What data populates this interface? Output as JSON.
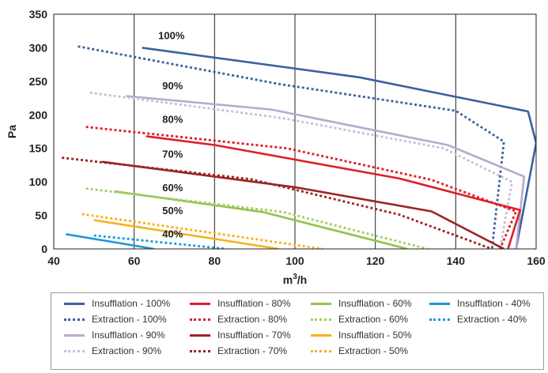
{
  "chart_data": {
    "type": "line",
    "xlabel": "m³/h",
    "ylabel": "Pa",
    "xlim": [
      40,
      160
    ],
    "ylim": [
      0,
      350
    ],
    "x_ticks": [
      "40",
      "60",
      "80",
      "100",
      "120",
      "140",
      "160"
    ],
    "y_ticks": [
      "0",
      "50",
      "100",
      "150",
      "200",
      "250",
      "300",
      "350"
    ],
    "grid": "vertical lines at each x tick",
    "annotations": [
      {
        "text": "100%",
        "x": 66,
        "y": 313
      },
      {
        "text": "90%",
        "x": 67,
        "y": 238
      },
      {
        "text": "80%",
        "x": 67,
        "y": 188
      },
      {
        "text": "70%",
        "x": 67,
        "y": 136
      },
      {
        "text": "60%",
        "x": 67,
        "y": 86
      },
      {
        "text": "50%",
        "x": 67,
        "y": 52
      },
      {
        "text": "40%",
        "x": 67,
        "y": 17
      }
    ],
    "series": [
      {
        "name": "Insufflation - 100%",
        "color": "#3a62a0",
        "dash": "solid",
        "points": [
          [
            62,
            300
          ],
          [
            116,
            256
          ],
          [
            158,
            205
          ],
          [
            160,
            158
          ],
          [
            155,
            0
          ]
        ]
      },
      {
        "name": "Extraction - 100%",
        "color": "#3a62a0",
        "dash": "dotted",
        "points": [
          [
            46,
            302
          ],
          [
            96,
            246
          ],
          [
            140,
            206
          ],
          [
            152,
            160
          ],
          [
            149,
            0
          ]
        ]
      },
      {
        "name": "Insufflation - 90%",
        "color": "#b9a9cd",
        "dash": "solid",
        "points": [
          [
            58,
            228
          ],
          [
            94,
            208
          ],
          [
            138,
            155
          ],
          [
            157,
            108
          ],
          [
            155,
            0
          ]
        ]
      },
      {
        "name": "Extraction - 90%",
        "color": "#c9bdd8",
        "dash": "dotted",
        "points": [
          [
            49,
            233
          ],
          [
            97,
            195
          ],
          [
            137,
            150
          ],
          [
            154,
            100
          ],
          [
            151,
            0
          ]
        ]
      },
      {
        "name": "Insufflation - 80%",
        "color": "#e01e28",
        "dash": "solid",
        "points": [
          [
            63,
            168
          ],
          [
            80,
            155
          ],
          [
            126,
            105
          ],
          [
            156,
            58
          ],
          [
            153,
            0
          ]
        ]
      },
      {
        "name": "Extraction - 80%",
        "color": "#e01e28",
        "dash": "dotted",
        "points": [
          [
            48,
            182
          ],
          [
            98,
            150
          ],
          [
            134,
            103
          ],
          [
            155,
            56
          ],
          [
            151,
            0
          ]
        ]
      },
      {
        "name": "Insufflation - 70%",
        "color": "#9b2424",
        "dash": "solid",
        "points": [
          [
            52,
            130
          ],
          [
            100,
            92
          ],
          [
            134,
            56
          ],
          [
            152,
            0
          ]
        ]
      },
      {
        "name": "Extraction - 70%",
        "color": "#9b2424",
        "dash": "dotted",
        "points": [
          [
            42,
            136
          ],
          [
            89,
            104
          ],
          [
            126,
            51
          ],
          [
            149,
            0
          ]
        ]
      },
      {
        "name": "Insufflation - 60%",
        "color": "#92c34b",
        "dash": "solid",
        "points": [
          [
            55,
            86
          ],
          [
            92,
            55
          ],
          [
            128,
            0
          ]
        ]
      },
      {
        "name": "Extraction - 60%",
        "color": "#a4ce6a",
        "dash": "dotted",
        "points": [
          [
            48,
            90
          ],
          [
            97,
            55
          ],
          [
            133,
            0
          ]
        ]
      },
      {
        "name": "Insufflation - 50%",
        "color": "#f5b21d",
        "dash": "solid",
        "points": [
          [
            50,
            43
          ],
          [
            96,
            0
          ]
        ]
      },
      {
        "name": "Extraction - 50%",
        "color": "#f5b21d",
        "dash": "dotted",
        "points": [
          [
            47,
            52
          ],
          [
            107,
            0
          ]
        ]
      },
      {
        "name": "Insufflation - 40%",
        "color": "#1e9ad6",
        "dash": "solid",
        "points": [
          [
            43,
            22
          ],
          [
            65,
            0
          ]
        ]
      },
      {
        "name": "Extraction - 40%",
        "color": "#1e9ad6",
        "dash": "dotted",
        "points": [
          [
            50,
            20
          ],
          [
            83,
            0
          ]
        ]
      }
    ]
  }
}
